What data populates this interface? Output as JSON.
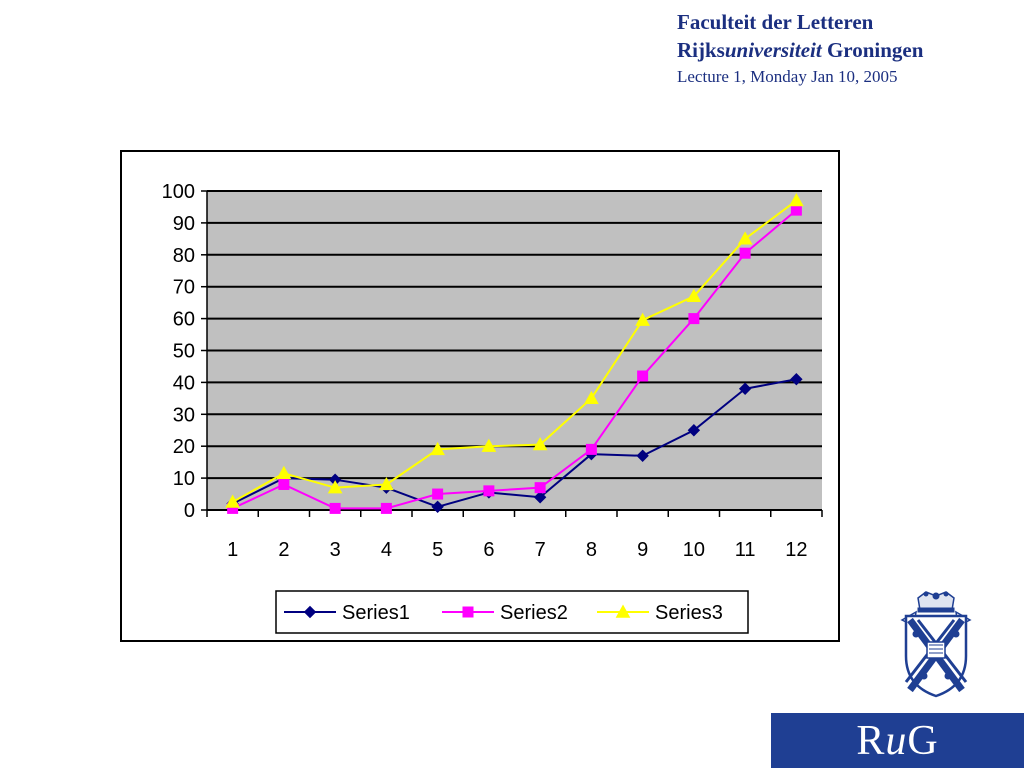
{
  "header": {
    "line1": "Faculteit der Letteren",
    "line2_prefix": "Rijks",
    "line2_italic": "universiteit",
    "line2_suffix": " Groningen",
    "line3": "Lecture 1, Monday Jan 10, 2005"
  },
  "logo": {
    "r": "R",
    "u": "u",
    "g": "G"
  },
  "colors": {
    "brand_blue": "#1f3f93",
    "header_text": "#1b2f80",
    "plot_bg": "#c0c0c0"
  },
  "chart_data": {
    "type": "line",
    "categories": [
      "1",
      "2",
      "3",
      "4",
      "5",
      "6",
      "7",
      "8",
      "9",
      "10",
      "11",
      "12"
    ],
    "ylim": [
      0,
      100
    ],
    "yticks": [
      0,
      10,
      20,
      30,
      40,
      50,
      60,
      70,
      80,
      90,
      100
    ],
    "grid": true,
    "legend_position": "bottom",
    "series": [
      {
        "name": "Series1",
        "color": "#000080",
        "marker": "diamond",
        "values": [
          2,
          10,
          9.5,
          7,
          1,
          5.5,
          4,
          17.5,
          17,
          25,
          38,
          41
        ]
      },
      {
        "name": "Series2",
        "color": "#ff00ff",
        "marker": "square",
        "values": [
          0.5,
          8,
          0.5,
          0.5,
          5,
          6,
          7,
          19,
          42,
          60,
          80.5,
          94
        ]
      },
      {
        "name": "Series3",
        "color": "#ffff00",
        "marker": "triangle",
        "values": [
          2.5,
          11.5,
          7,
          8,
          19,
          20,
          20.5,
          35,
          59.5,
          67,
          85,
          97
        ]
      }
    ]
  }
}
